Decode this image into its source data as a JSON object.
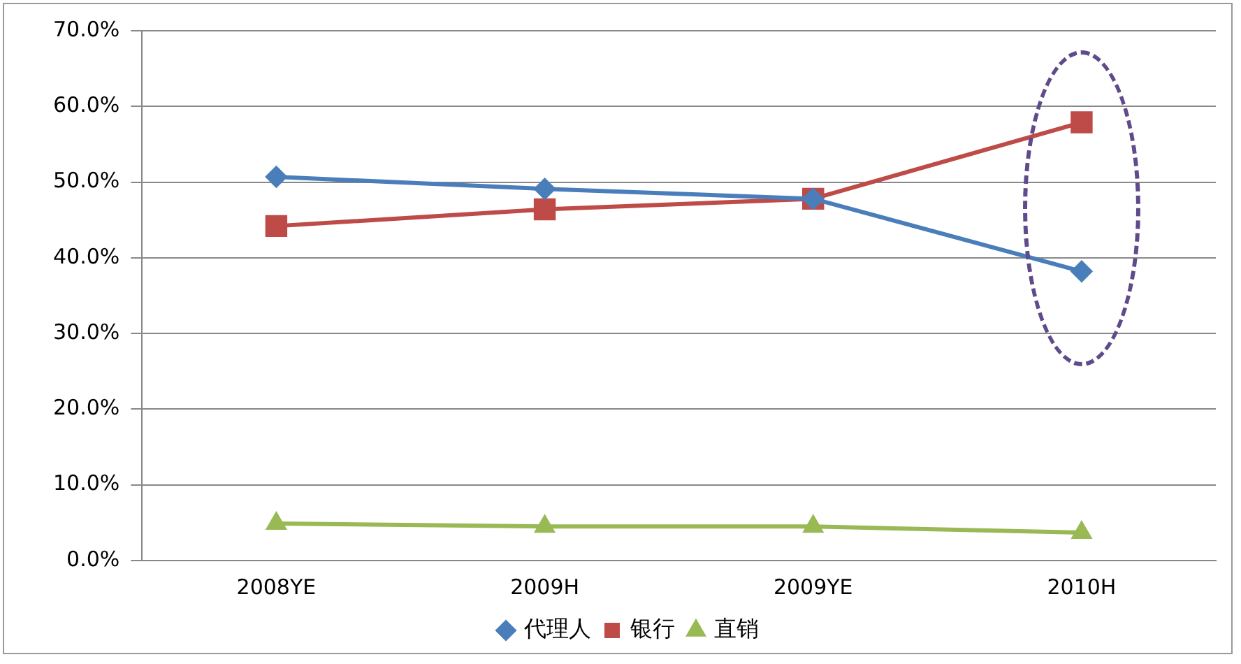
{
  "chart_data": {
    "type": "line",
    "categories": [
      "2008YE",
      "2009H",
      "2009YE",
      "2010H"
    ],
    "series": [
      {
        "name": "代理人",
        "color": "#4a7ebb",
        "marker": "diamond",
        "values": [
          50.7,
          49.1,
          47.8,
          38.2
        ]
      },
      {
        "name": "银行",
        "color": "#be4b48",
        "marker": "square",
        "values": [
          44.2,
          46.4,
          47.8,
          57.9
        ]
      },
      {
        "name": "直销",
        "color": "#98b954",
        "marker": "triangle",
        "values": [
          4.9,
          4.5,
          4.5,
          3.7
        ]
      }
    ],
    "ylim": [
      0,
      70
    ],
    "yticks": [
      {
        "value": 0,
        "label": "0.0%"
      },
      {
        "value": 10,
        "label": "10.0%"
      },
      {
        "value": 20,
        "label": "20.0%"
      },
      {
        "value": 30,
        "label": "30.0%"
      },
      {
        "value": 40,
        "label": "40.0%"
      },
      {
        "value": 50,
        "label": "50.0%"
      },
      {
        "value": 60,
        "label": "60.0%"
      },
      {
        "value": 70,
        "label": "70.0%"
      }
    ],
    "grid": "y",
    "legend": "bottom",
    "line_style": "solid"
  }
}
